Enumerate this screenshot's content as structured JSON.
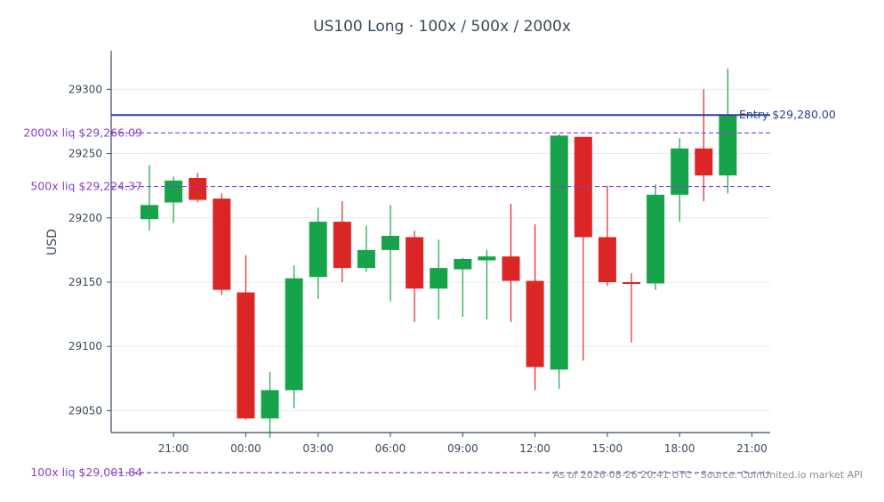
{
  "chart_data": {
    "type": "candlestick",
    "title": "US100 Long · 100x / 500x / 2000x",
    "ylabel": "USD",
    "xlabel": "",
    "ylim": [
      29033,
      29330
    ],
    "y_ticks": [
      29050,
      29100,
      29150,
      29200,
      29250,
      29300
    ],
    "x_ticks": [
      "21:00",
      "00:00",
      "03:00",
      "06:00",
      "09:00",
      "12:00",
      "15:00",
      "18:00",
      "21:00"
    ],
    "grid": "horizontal",
    "candles": [
      {
        "time": "20:00",
        "open": 29199,
        "high": 29241,
        "low": 29190,
        "close": 29210
      },
      {
        "time": "21:00",
        "open": 29212,
        "high": 29232,
        "low": 29196,
        "close": 29229
      },
      {
        "time": "22:00",
        "open": 29231,
        "high": 29235,
        "low": 29212,
        "close": 29214
      },
      {
        "time": "23:00",
        "open": 29215,
        "high": 29219,
        "low": 29140,
        "close": 29144
      },
      {
        "time": "00:00",
        "open": 29142,
        "high": 29171,
        "low": 29043,
        "close": 29044
      },
      {
        "time": "01:00",
        "open": 29044,
        "high": 29080,
        "low": 29029,
        "close": 29066
      },
      {
        "time": "02:00",
        "open": 29066,
        "high": 29163,
        "low": 29052,
        "close": 29153
      },
      {
        "time": "03:00",
        "open": 29154,
        "high": 29208,
        "low": 29137,
        "close": 29197
      },
      {
        "time": "04:00",
        "open": 29197,
        "high": 29213,
        "low": 29150,
        "close": 29161
      },
      {
        "time": "05:00",
        "open": 29161,
        "high": 29194,
        "low": 29158,
        "close": 29175
      },
      {
        "time": "06:00",
        "open": 29175,
        "high": 29210,
        "low": 29135,
        "close": 29186
      },
      {
        "time": "07:00",
        "open": 29185,
        "high": 29190,
        "low": 29119,
        "close": 29145
      },
      {
        "time": "08:00",
        "open": 29145,
        "high": 29183,
        "low": 29121,
        "close": 29161
      },
      {
        "time": "09:00",
        "open": 29160,
        "high": 29169,
        "low": 29123,
        "close": 29168
      },
      {
        "time": "10:00",
        "open": 29167,
        "high": 29175,
        "low": 29121,
        "close": 29170
      },
      {
        "time": "11:00",
        "open": 29170,
        "high": 29211,
        "low": 29119,
        "close": 29151
      },
      {
        "time": "12:00",
        "open": 29151,
        "high": 29195,
        "low": 29066,
        "close": 29084
      },
      {
        "time": "13:00",
        "open": 29082,
        "high": 29265,
        "low": 29067,
        "close": 29264
      },
      {
        "time": "14:00",
        "open": 29263,
        "high": 29263,
        "low": 29089,
        "close": 29185
      },
      {
        "time": "15:00",
        "open": 29185,
        "high": 29225,
        "low": 29147,
        "close": 29150
      },
      {
        "time": "16:00",
        "open": 29150,
        "high": 29157,
        "low": 29103,
        "close": 29149
      },
      {
        "time": "17:00",
        "open": 29149,
        "high": 29226,
        "low": 29144,
        "close": 29218
      },
      {
        "time": "18:00",
        "open": 29218,
        "high": 29262,
        "low": 29197,
        "close": 29254
      },
      {
        "time": "19:00",
        "open": 29254,
        "high": 29300,
        "low": 29213,
        "close": 29233
      },
      {
        "time": "20:00",
        "open": 29233,
        "high": 29316,
        "low": 29219,
        "close": 29280
      }
    ],
    "lines": [
      {
        "label": "Entry $29,280.00",
        "value": 29280.0,
        "style": "solid",
        "color": "#2c3f9a"
      },
      {
        "label": "2000x liq $29,266.09",
        "value": 29266.09,
        "style": "dashed",
        "color": "#8b3fc9"
      },
      {
        "label": "500x liq $29,224.37",
        "value": 29224.37,
        "style": "dashed",
        "color": "#8b3fc9"
      },
      {
        "label": "100x liq $29,001.84",
        "value": 29001.84,
        "style": "dashed",
        "color": "#8b3fc9"
      }
    ],
    "colors": {
      "up": "#16a34a",
      "down": "#dc2626",
      "axis": "#3b4a5c",
      "grid": "#e8ebee"
    }
  },
  "footer": "As of 2026-08-26 20:41 UTC · Source: CoinUnited.io market API"
}
